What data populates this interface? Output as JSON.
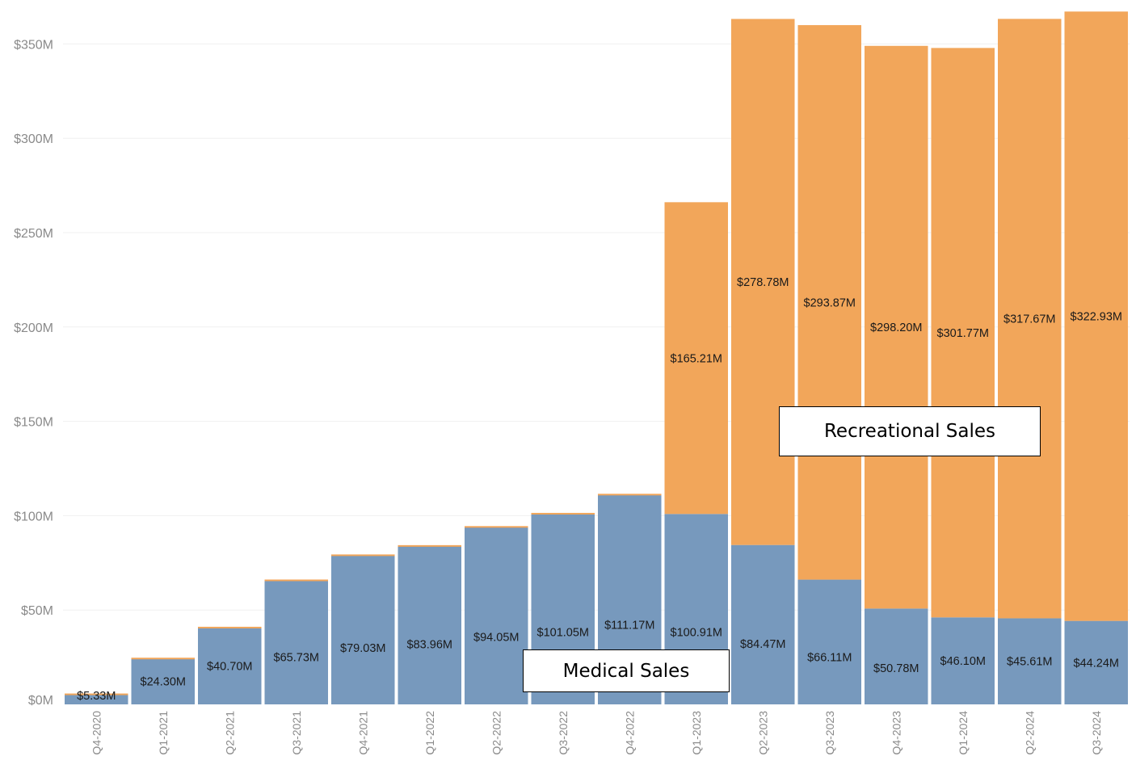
{
  "chart_data": {
    "type": "bar",
    "stacked": true,
    "title": "",
    "xlabel": "",
    "ylabel": "",
    "ylim": [
      0,
      370
    ],
    "y_unit": "$M",
    "y_ticks": [
      "$0M",
      "$50M",
      "$100M",
      "$150M",
      "$200M",
      "$250M",
      "$300M",
      "$350M"
    ],
    "y_tick_values": [
      0,
      50,
      100,
      150,
      200,
      250,
      300,
      350
    ],
    "grid": true,
    "categories": [
      "Q4-2020",
      "Q1-2021",
      "Q2-2021",
      "Q3-2021",
      "Q4-2021",
      "Q1-2022",
      "Q2-2022",
      "Q3-2022",
      "Q4-2022",
      "Q1-2023",
      "Q2-2023",
      "Q3-2023",
      "Q4-2023",
      "Q1-2024",
      "Q2-2024",
      "Q3-2024"
    ],
    "series": [
      {
        "name": "Medical Sales",
        "color": "#7799bd",
        "values": [
          5.33,
          24.3,
          40.7,
          65.73,
          79.03,
          83.96,
          94.05,
          101.05,
          111.17,
          100.91,
          84.47,
          66.11,
          50.78,
          46.1,
          45.61,
          44.24
        ],
        "labels": [
          "$5.33M",
          "$24.30M",
          "$40.70M",
          "$65.73M",
          "$79.03M",
          "$83.96M",
          "$94.05M",
          "$101.05M",
          "$111.17M",
          "$100.91M",
          "$84.47M",
          "$66.11M",
          "$50.78M",
          "$46.10M",
          "$45.61M",
          "$44.24M"
        ]
      },
      {
        "name": "Recreational Sales",
        "color": "#f2a65a",
        "values": [
          0,
          0,
          0,
          0,
          0,
          0,
          0,
          0,
          0,
          165.21,
          278.78,
          293.87,
          298.2,
          301.77,
          317.67,
          322.93
        ],
        "labels": [
          "",
          "",
          "",
          "",
          "",
          "",
          "",
          "",
          "",
          "$165.21M",
          "$278.78M",
          "$293.87M",
          "$298.20M",
          "$301.77M",
          "$317.67M",
          "$322.93M"
        ]
      }
    ],
    "legend": {
      "placement": "inline",
      "recreational_label": "Recreational Sales",
      "medical_label": "Medical Sales"
    }
  }
}
